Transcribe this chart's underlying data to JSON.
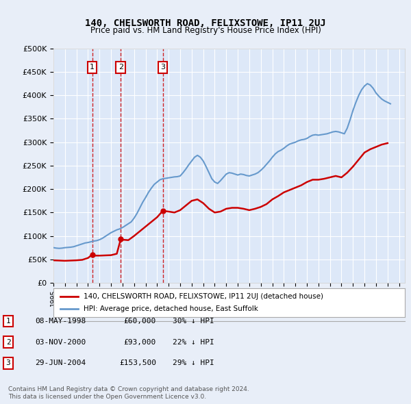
{
  "title": "140, CHELSWORTH ROAD, FELIXSTOWE, IP11 2UJ",
  "subtitle": "Price paid vs. HM Land Registry's House Price Index (HPI)",
  "legend_line1": "140, CHELSWORTH ROAD, FELIXSTOWE, IP11 2UJ (detached house)",
  "legend_line2": "HPI: Average price, detached house, East Suffolk",
  "footer1": "Contains HM Land Registry data © Crown copyright and database right 2024.",
  "footer2": "This data is licensed under the Open Government Licence v3.0.",
  "sales": [
    {
      "label": "1",
      "date": "08-MAY-1998",
      "price": 60000,
      "year": 1998.36,
      "pct": "30%",
      "dir": "↓"
    },
    {
      "label": "2",
      "date": "03-NOV-2000",
      "price": 93000,
      "year": 2000.84,
      "pct": "22%",
      "dir": "↓"
    },
    {
      "label": "3",
      "date": "29-JUN-2004",
      "price": 153500,
      "year": 2004.49,
      "pct": "29%",
      "dir": "↓"
    }
  ],
  "ylim": [
    0,
    500000
  ],
  "yticks": [
    0,
    50000,
    100000,
    150000,
    200000,
    250000,
    300000,
    350000,
    400000,
    450000,
    500000
  ],
  "xlim_start": 1995.0,
  "xlim_end": 2025.5,
  "red_color": "#cc0000",
  "blue_color": "#6699cc",
  "bg_color": "#e8eef8",
  "plot_bg": "#dde8f8",
  "grid_color": "#ffffff",
  "dashed_color": "#cc0000",
  "hpi_data": {
    "years": [
      1995.0,
      1995.25,
      1995.5,
      1995.75,
      1996.0,
      1996.25,
      1996.5,
      1996.75,
      1997.0,
      1997.25,
      1997.5,
      1997.75,
      1998.0,
      1998.25,
      1998.5,
      1998.75,
      1999.0,
      1999.25,
      1999.5,
      1999.75,
      2000.0,
      2000.25,
      2000.5,
      2000.75,
      2001.0,
      2001.25,
      2001.5,
      2001.75,
      2002.0,
      2002.25,
      2002.5,
      2002.75,
      2003.0,
      2003.25,
      2003.5,
      2003.75,
      2004.0,
      2004.25,
      2004.5,
      2004.75,
      2005.0,
      2005.25,
      2005.5,
      2005.75,
      2006.0,
      2006.25,
      2006.5,
      2006.75,
      2007.0,
      2007.25,
      2007.5,
      2007.75,
      2008.0,
      2008.25,
      2008.5,
      2008.75,
      2009.0,
      2009.25,
      2009.5,
      2009.75,
      2010.0,
      2010.25,
      2010.5,
      2010.75,
      2011.0,
      2011.25,
      2011.5,
      2011.75,
      2012.0,
      2012.25,
      2012.5,
      2012.75,
      2013.0,
      2013.25,
      2013.5,
      2013.75,
      2014.0,
      2014.25,
      2014.5,
      2014.75,
      2015.0,
      2015.25,
      2015.5,
      2015.75,
      2016.0,
      2016.25,
      2016.5,
      2016.75,
      2017.0,
      2017.25,
      2017.5,
      2017.75,
      2018.0,
      2018.25,
      2018.5,
      2018.75,
      2019.0,
      2019.25,
      2019.5,
      2019.75,
      2020.0,
      2020.25,
      2020.5,
      2020.75,
      2021.0,
      2021.25,
      2021.5,
      2021.75,
      2022.0,
      2022.25,
      2022.5,
      2022.75,
      2023.0,
      2023.25,
      2023.5,
      2023.75,
      2024.0,
      2024.25
    ],
    "values": [
      75000,
      74000,
      73500,
      74000,
      75000,
      75500,
      76000,
      77000,
      79000,
      81000,
      83000,
      85000,
      86000,
      87500,
      89000,
      90000,
      92000,
      95000,
      99000,
      103000,
      107000,
      110000,
      113000,
      115000,
      118000,
      122000,
      126000,
      130000,
      138000,
      148000,
      160000,
      172000,
      182000,
      193000,
      202000,
      210000,
      215000,
      220000,
      222000,
      223000,
      224000,
      225000,
      226000,
      226500,
      228000,
      235000,
      243000,
      252000,
      260000,
      268000,
      272000,
      268000,
      260000,
      248000,
      235000,
      222000,
      215000,
      212000,
      218000,
      225000,
      232000,
      235000,
      234000,
      232000,
      230000,
      232000,
      231000,
      229000,
      228000,
      230000,
      232000,
      235000,
      240000,
      246000,
      253000,
      260000,
      268000,
      275000,
      280000,
      283000,
      287000,
      292000,
      296000,
      298000,
      300000,
      303000,
      305000,
      306000,
      308000,
      312000,
      315000,
      316000,
      315000,
      316000,
      317000,
      318000,
      320000,
      322000,
      323000,
      322000,
      320000,
      318000,
      330000,
      348000,
      368000,
      385000,
      400000,
      412000,
      420000,
      425000,
      422000,
      415000,
      405000,
      398000,
      392000,
      388000,
      385000,
      382000
    ]
  },
  "price_data": {
    "years": [
      1995.0,
      1995.5,
      1996.0,
      1996.5,
      1997.0,
      1997.5,
      1998.0,
      1998.36,
      1998.5,
      1999.0,
      1999.5,
      2000.0,
      2000.5,
      2000.84,
      2001.0,
      2001.5,
      2002.0,
      2002.5,
      2003.0,
      2003.5,
      2004.0,
      2004.49,
      2005.0,
      2005.5,
      2006.0,
      2006.5,
      2007.0,
      2007.5,
      2008.0,
      2008.5,
      2009.0,
      2009.5,
      2010.0,
      2010.5,
      2011.0,
      2011.5,
      2012.0,
      2012.5,
      2013.0,
      2013.5,
      2014.0,
      2014.5,
      2015.0,
      2015.5,
      2016.0,
      2016.5,
      2017.0,
      2017.5,
      2018.0,
      2018.5,
      2019.0,
      2019.5,
      2020.0,
      2020.5,
      2021.0,
      2021.5,
      2022.0,
      2022.5,
      2023.0,
      2023.5,
      2024.0
    ],
    "values": [
      48000,
      47500,
      47000,
      47500,
      48000,
      49000,
      53000,
      60000,
      58000,
      58000,
      58500,
      59000,
      62000,
      93000,
      92000,
      91000,
      100000,
      110000,
      120000,
      130000,
      140000,
      153500,
      152000,
      150000,
      155000,
      165000,
      175000,
      178000,
      170000,
      158000,
      150000,
      152000,
      158000,
      160000,
      160000,
      158000,
      155000,
      158000,
      162000,
      168000,
      178000,
      185000,
      193000,
      198000,
      203000,
      208000,
      215000,
      220000,
      220000,
      222000,
      225000,
      228000,
      225000,
      235000,
      248000,
      263000,
      278000,
      285000,
      290000,
      295000,
      298000
    ]
  }
}
